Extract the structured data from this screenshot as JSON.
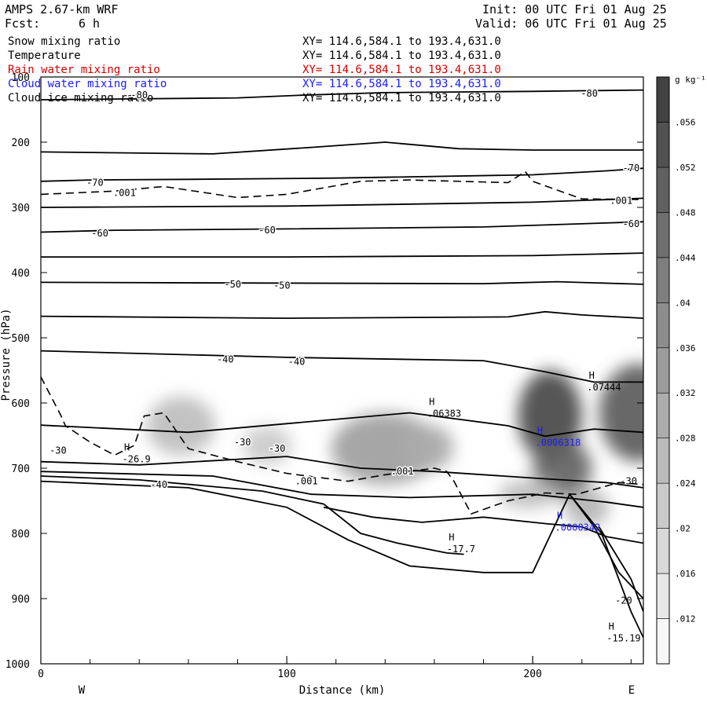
{
  "header": {
    "model": "AMPS 2.67-km WRF",
    "forecast_label": "Fcst:",
    "forecast_value": "6 h",
    "init": "Init: 00 UTC Fri 01 Aug 25",
    "valid": "Valid: 06 UTC Fri 01 Aug 25"
  },
  "variables": [
    {
      "name": "Snow mixing ratio",
      "xy": "XY= 114.6,584.1 to 193.4,631.0",
      "color": "#000000"
    },
    {
      "name": "Temperature",
      "xy": "XY= 114.6,584.1 to 193.4,631.0",
      "color": "#000000"
    },
    {
      "name": "Rain water mixing ratio",
      "xy": "XY= 114.6,584.1 to 193.4,631.0",
      "color": "#d40000"
    },
    {
      "name": "Cloud water mixing ratio",
      "xy": "XY= 114.6,584.1 to 193.4,631.0",
      "color": "#1a1aff"
    },
    {
      "name": "Cloud ice mixing ratio",
      "xy": "XY= 114.6,584.1 to 193.4,631.0",
      "color": "#000000"
    }
  ],
  "chart_data": {
    "type": "contour-cross-section",
    "xlabel": "Distance (km)",
    "ylabel": "Pressure (hPa)",
    "xlim": [
      0,
      245
    ],
    "ylim": [
      1000,
      100
    ],
    "x_ticks": [
      0,
      100,
      200
    ],
    "y_ticks": [
      100,
      200,
      300,
      400,
      500,
      600,
      700,
      800,
      900,
      1000
    ],
    "left_end_label": "W",
    "right_end_label": "E",
    "colorbar": {
      "unit": "g kg⁻¹",
      "ticks": [
        ".012",
        ".016",
        ".02",
        ".024",
        ".028",
        ".032",
        ".036",
        ".04",
        ".044",
        ".048",
        ".052",
        ".056"
      ],
      "values": [
        0.012,
        0.016,
        0.02,
        0.024,
        0.028,
        0.032,
        0.036,
        0.04,
        0.044,
        0.048,
        0.052,
        0.056
      ],
      "min": 0.008,
      "max": 0.06,
      "color_low": "#ffffff",
      "color_high": "#3a3a3a"
    },
    "snow_blobs": [
      {
        "x": 57,
        "p": 635,
        "rx": 14,
        "rp": 45,
        "value": 0.026
      },
      {
        "x": 92,
        "p": 665,
        "rx": 10,
        "rp": 30,
        "value": 0.022
      },
      {
        "x": 140,
        "p": 670,
        "rx": 22,
        "rp": 55,
        "value": 0.034
      },
      {
        "x": 158,
        "p": 668,
        "rx": 10,
        "rp": 35,
        "value": 0.03
      },
      {
        "x": 207,
        "p": 620,
        "rx": 13,
        "rp": 70,
        "value": 0.058
      },
      {
        "x": 212,
        "p": 700,
        "rx": 12,
        "rp": 45,
        "value": 0.05
      },
      {
        "x": 243,
        "p": 615,
        "rx": 16,
        "rp": 75,
        "value": 0.052
      },
      {
        "x": 198,
        "p": 740,
        "rx": 12,
        "rp": 22,
        "value": 0.026
      },
      {
        "x": 222,
        "p": 760,
        "rx": 9,
        "rp": 30,
        "value": 0.028
      }
    ],
    "temperature_contours": [
      {
        "points": [
          [
            0,
            135
          ],
          [
            80,
            132
          ],
          [
            106,
            128
          ],
          [
            140,
            124
          ],
          [
            200,
            122
          ],
          [
            245,
            120
          ]
        ],
        "labels": [
          {
            "text": "-80",
            "x": 223,
            "p": 125
          },
          {
            "text": "-80",
            "x": 40,
            "p": 128
          }
        ]
      },
      {
        "points": [
          [
            0,
            215
          ],
          [
            70,
            218
          ],
          [
            110,
            208
          ],
          [
            140,
            200
          ],
          [
            170,
            210
          ],
          [
            200,
            212
          ],
          [
            245,
            212
          ]
        ],
        "labels": []
      },
      {
        "points": [
          [
            0,
            260
          ],
          [
            20,
            258
          ],
          [
            60,
            257
          ],
          [
            120,
            255
          ],
          [
            200,
            250
          ],
          [
            230,
            244
          ],
          [
            245,
            240
          ]
        ],
        "labels": [
          {
            "text": "-70",
            "x": 22,
            "p": 262
          },
          {
            "text": "-70",
            "x": 240,
            "p": 240
          }
        ]
      },
      {
        "points": [
          [
            0,
            300
          ],
          [
            100,
            298
          ],
          [
            200,
            292
          ],
          [
            245,
            286
          ]
        ],
        "labels": []
      },
      {
        "points": [
          [
            0,
            338
          ],
          [
            30,
            335
          ],
          [
            100,
            333
          ],
          [
            180,
            330
          ],
          [
            245,
            322
          ]
        ],
        "labels": [
          {
            "text": "-60",
            "x": 24,
            "p": 340
          },
          {
            "text": "-60",
            "x": 92,
            "p": 335
          },
          {
            "text": "-60",
            "x": 240,
            "p": 325
          }
        ]
      },
      {
        "points": [
          [
            0,
            376
          ],
          [
            100,
            376
          ],
          [
            200,
            374
          ],
          [
            245,
            370
          ]
        ],
        "labels": []
      },
      {
        "points": [
          [
            0,
            415
          ],
          [
            90,
            416
          ],
          [
            180,
            417
          ],
          [
            210,
            414
          ],
          [
            245,
            418
          ]
        ],
        "labels": [
          {
            "text": "-50",
            "x": 78,
            "p": 418
          },
          {
            "text": "-50",
            "x": 98,
            "p": 420
          }
        ]
      },
      {
        "points": [
          [
            0,
            467
          ],
          [
            100,
            470
          ],
          [
            190,
            468
          ],
          [
            205,
            460
          ],
          [
            220,
            465
          ],
          [
            245,
            470
          ]
        ],
        "labels": []
      },
      {
        "points": [
          [
            0,
            520
          ],
          [
            100,
            530
          ],
          [
            180,
            535
          ],
          [
            205,
            552
          ],
          [
            225,
            568
          ],
          [
            245,
            568
          ]
        ],
        "labels": [
          {
            "text": "-40",
            "x": 75,
            "p": 533
          },
          {
            "text": "-40",
            "x": 104,
            "p": 537
          }
        ]
      },
      {
        "points": [
          [
            0,
            634
          ],
          [
            60,
            645
          ],
          [
            150,
            615
          ],
          [
            190,
            635
          ],
          [
            205,
            651
          ],
          [
            225,
            640
          ],
          [
            245,
            645
          ]
        ],
        "labels": [
          {
            "text": "-30",
            "x": 82,
            "p": 660
          },
          {
            "text": "-30",
            "x": 96,
            "p": 670
          },
          {
            "text": "-30",
            "x": 7,
            "p": 673
          },
          {
            "text": "-30",
            "x": 239,
            "p": 720
          }
        ]
      },
      {
        "points": [
          [
            0,
            690
          ],
          [
            40,
            695
          ],
          [
            100,
            682
          ],
          [
            130,
            700
          ],
          [
            160,
            705
          ],
          [
            200,
            715
          ],
          [
            230,
            722
          ],
          [
            245,
            730
          ]
        ],
        "labels": []
      },
      {
        "points": [
          [
            0,
            705
          ],
          [
            70,
            712
          ],
          [
            110,
            740
          ],
          [
            150,
            745
          ],
          [
            200,
            740
          ],
          [
            230,
            752
          ],
          [
            245,
            760
          ]
        ],
        "labels": []
      },
      {
        "points": [
          [
            0,
            720
          ],
          [
            60,
            730
          ],
          [
            100,
            760
          ],
          [
            125,
            810
          ],
          [
            150,
            850
          ],
          [
            180,
            860
          ],
          [
            200,
            860
          ],
          [
            210,
            780
          ],
          [
            215,
            740
          ],
          [
            225,
            790
          ],
          [
            235,
            860
          ],
          [
            245,
            900
          ]
        ],
        "labels": []
      },
      {
        "points": [
          [
            0,
            712
          ],
          [
            40,
            718
          ],
          [
            90,
            735
          ],
          [
            115,
            755
          ],
          [
            130,
            800
          ],
          [
            145,
            815
          ],
          [
            165,
            830
          ],
          [
            172,
            832
          ]
        ],
        "labels": [
          {
            "text": "-40",
            "x": 48,
            "p": 725
          }
        ]
      },
      {
        "points": [
          [
            115,
            760
          ],
          [
            135,
            775
          ],
          [
            155,
            783
          ],
          [
            180,
            775
          ],
          [
            205,
            785
          ],
          [
            220,
            790
          ],
          [
            230,
            805
          ],
          [
            245,
            815
          ]
        ],
        "labels": []
      },
      {
        "points": [
          [
            227,
            790
          ],
          [
            240,
            870
          ],
          [
            245,
            920
          ]
        ],
        "labels": [
          {
            "text": "-20",
            "x": 237,
            "p": 903
          }
        ]
      },
      {
        "points": [
          [
            215,
            740
          ],
          [
            228,
            800
          ],
          [
            240,
            920
          ],
          [
            245,
            960
          ]
        ],
        "labels": []
      }
    ],
    "rain_dashed": [
      {
        "points": [
          [
            0,
            280
          ],
          [
            30,
            275
          ],
          [
            50,
            268
          ],
          [
            80,
            285
          ],
          [
            100,
            280
          ],
          [
            130,
            260
          ],
          [
            150,
            258
          ],
          [
            190,
            262
          ],
          [
            197,
            245
          ],
          [
            200,
            260
          ],
          [
            220,
            287
          ],
          [
            245,
            288
          ]
        ],
        "labels": [
          {
            "text": ".001",
            "x": 34,
            "p": 278
          },
          {
            "text": ".001",
            "x": 236,
            "p": 290
          }
        ]
      },
      {
        "points": [
          [
            0,
            560
          ],
          [
            8,
            618
          ],
          [
            10,
            635
          ],
          [
            20,
            660
          ],
          [
            30,
            680
          ],
          [
            38,
            665
          ],
          [
            42,
            620
          ],
          [
            50,
            615
          ],
          [
            60,
            670
          ],
          [
            80,
            690
          ],
          [
            100,
            708
          ],
          [
            125,
            720
          ],
          [
            140,
            710
          ],
          [
            160,
            700
          ],
          [
            165,
            705
          ],
          [
            168,
            720
          ],
          [
            175,
            770
          ],
          [
            190,
            750
          ],
          [
            205,
            738
          ],
          [
            218,
            740
          ],
          [
            235,
            722
          ],
          [
            245,
            725
          ]
        ],
        "labels": [
          {
            "text": ".001",
            "x": 108,
            "p": 720
          },
          {
            "text": ".001",
            "x": 147,
            "p": 705
          }
        ]
      }
    ],
    "maxima": [
      {
        "label": "H",
        "value": ".07444",
        "x": 224,
        "p": 570,
        "color": "#000000"
      },
      {
        "label": "H",
        "value": ".06383",
        "x": 159,
        "p": 610,
        "color": "#000000"
      },
      {
        "label": "H",
        "value": ".0006318",
        "x": 203,
        "p": 655,
        "color": "#1a1aff"
      },
      {
        "label": "H",
        "value": "-26.9",
        "x": 35,
        "p": 680,
        "color": "#000000"
      },
      {
        "label": "H",
        "value": "-17.7",
        "x": 167,
        "p": 818,
        "color": "#000000"
      },
      {
        "label": "H",
        "value": ".0000342",
        "x": 211,
        "p": 785,
        "color": "#1a1aff"
      },
      {
        "label": "H",
        "value": "-15.19",
        "x": 232,
        "p": 955,
        "color": "#000000"
      }
    ]
  }
}
